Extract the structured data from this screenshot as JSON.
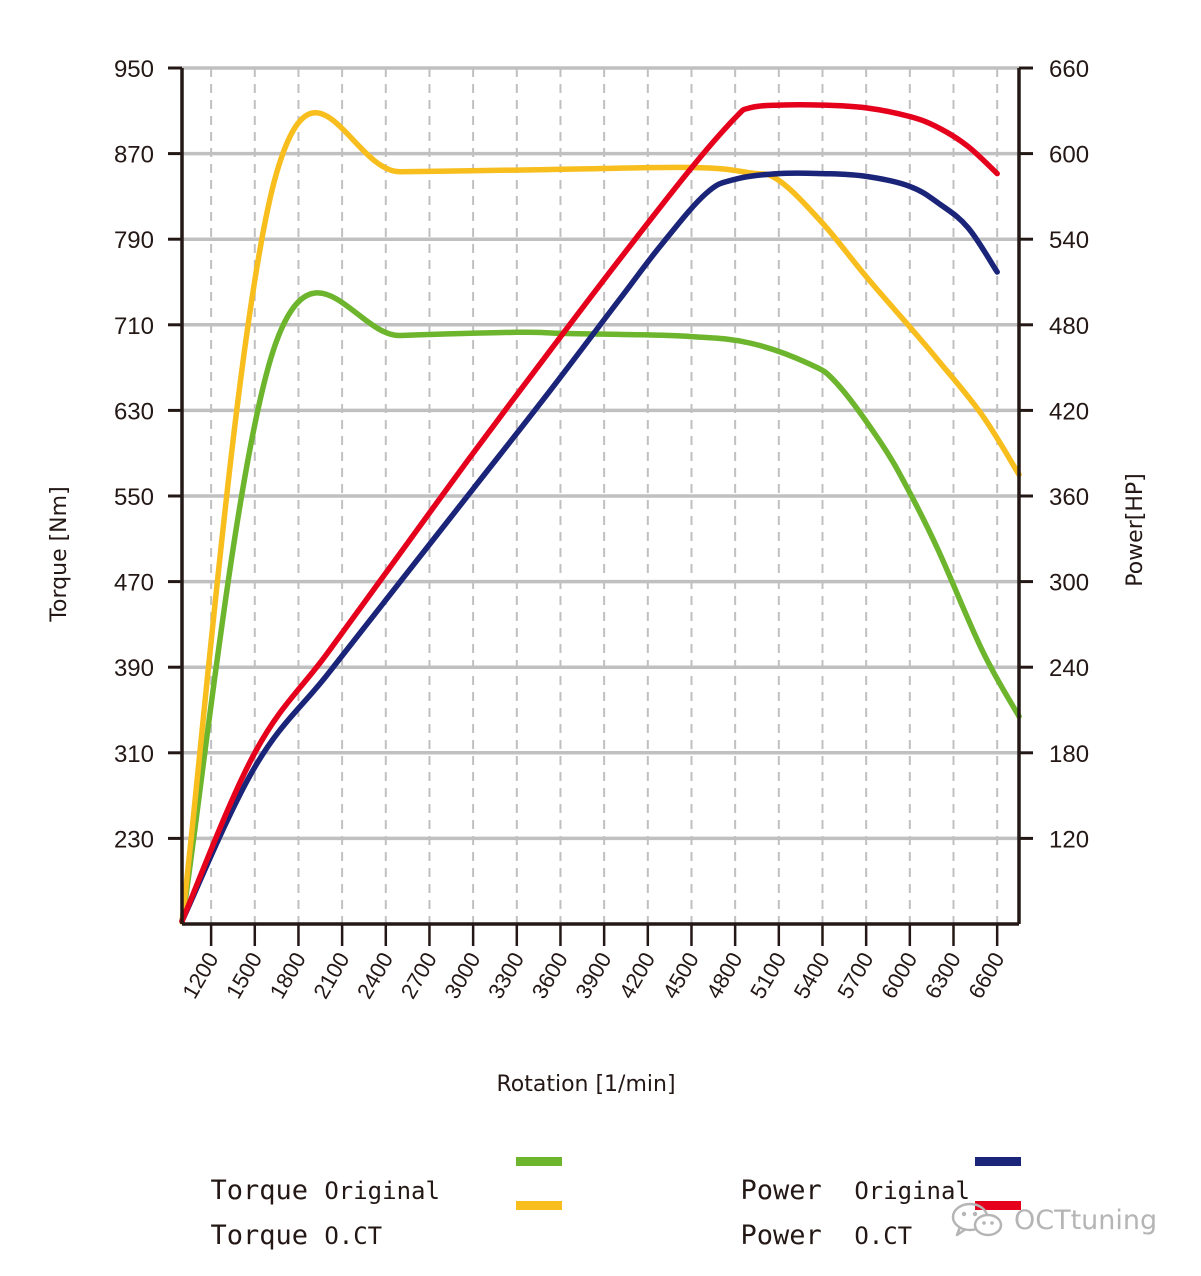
{
  "chart_data": {
    "type": "line",
    "xlabel": "Rotation [1/min]",
    "ylabel_left": "Torque [Nm]",
    "ylabel_right": "Power[HP]",
    "x_ticks": [
      1200,
      1500,
      1800,
      2100,
      2400,
      2700,
      3000,
      3300,
      3600,
      3900,
      4200,
      4500,
      4800,
      5100,
      5400,
      5700,
      6000,
      6300,
      6600
    ],
    "y_left_ticks": [
      230,
      310,
      390,
      470,
      550,
      630,
      710,
      790,
      870,
      950
    ],
    "y_right_ticks": [
      120,
      180,
      240,
      300,
      360,
      420,
      480,
      540,
      600,
      660
    ],
    "xlim": [
      1000,
      6750
    ],
    "ylim_left": [
      150,
      950
    ],
    "ylim_right": [
      60,
      660
    ],
    "grid": true,
    "series": [
      {
        "name": "Torque Original",
        "axis": "left",
        "color": "#6cb52d",
        "x": [
          1000,
          1650,
          2500,
          3300,
          3600,
          4000,
          4500,
          4900,
          5300,
          5500,
          5800,
          6000,
          6200,
          6500,
          6750
        ],
        "y": [
          152,
          695,
          700,
          703,
          702,
          701,
          699,
          693,
          674,
          655,
          600,
          553,
          498,
          405,
          344
        ]
      },
      {
        "name": "Torque O.CT",
        "axis": "left",
        "color": "#f7be1e",
        "x": [
          1000,
          1650,
          2500,
          3500,
          4500,
          4900,
          5100,
          5400,
          5700,
          6000,
          6200,
          6500,
          6750
        ],
        "y": [
          152,
          852,
          853,
          855,
          857,
          852,
          845,
          805,
          755,
          708,
          676,
          625,
          570
        ]
      },
      {
        "name": "Power Original",
        "axis": "right",
        "color": "#1a2479",
        "x": [
          1000,
          1500,
          2000,
          2500,
          3000,
          3500,
          4000,
          4300,
          4600,
          4800,
          5100,
          5400,
          5700,
          6000,
          6200,
          6400,
          6600
        ],
        "y": [
          62,
          170,
          235,
          300,
          365,
          430,
          497,
          537,
          572,
          582,
          586,
          586,
          584,
          577,
          565,
          548,
          517
        ]
      },
      {
        "name": "Power O.CT",
        "axis": "right",
        "color": "#e5001c",
        "x": [
          1000,
          1500,
          2000,
          2500,
          3000,
          3500,
          4000,
          4500,
          4800,
          4900,
          5100,
          5400,
          5700,
          6000,
          6200,
          6400,
          6600
        ],
        "y": [
          62,
          180,
          250,
          320,
          390,
          458,
          525,
          590,
          625,
          632,
          634,
          634,
          632,
          626,
          618,
          605,
          586
        ]
      }
    ]
  },
  "legend": [
    {
      "main": "Torque",
      "sub": "Original",
      "color": "#6cb52d"
    },
    {
      "main": "Torque",
      "sub": "O.CT",
      "color": "#f7be1e"
    },
    {
      "main": "Power",
      "sub": "Original",
      "color": "#1a2479"
    },
    {
      "main": "Power",
      "sub": "O.CT",
      "color": "#e5001c"
    }
  ],
  "watermark": {
    "text": "OCTtuning",
    "icon": "wechat-icon"
  },
  "colors": {
    "axis": "#231815",
    "grid": "#c0c0c0",
    "background": "#ffffff"
  }
}
